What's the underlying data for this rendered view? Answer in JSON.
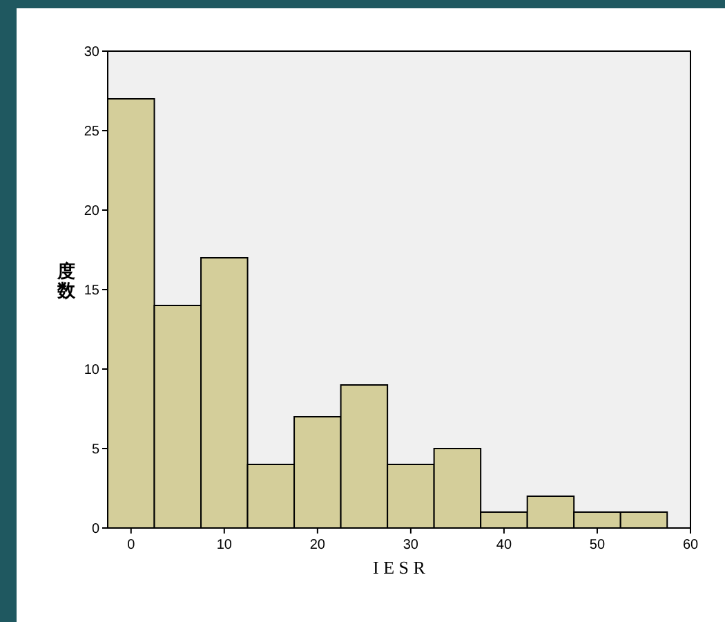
{
  "chart_data": {
    "type": "histogram",
    "xlabel": "I E S R",
    "ylabel": "度数",
    "bins": [
      -2.5,
      2.5,
      7.5,
      12.5,
      17.5,
      22.5,
      27.5,
      32.5,
      37.5,
      42.5,
      47.5,
      52.5,
      57.5
    ],
    "values": [
      27,
      14,
      17,
      4,
      7,
      9,
      4,
      5,
      1,
      2,
      1,
      1
    ],
    "color": "#d4ce9a",
    "xlim": [
      -2.5,
      60
    ],
    "xticks": [
      0,
      10,
      20,
      30,
      40,
      50,
      60
    ],
    "ylim": [
      0,
      30
    ],
    "yticks": [
      0,
      5,
      10,
      15,
      20,
      25,
      30
    ],
    "grid": false
  }
}
